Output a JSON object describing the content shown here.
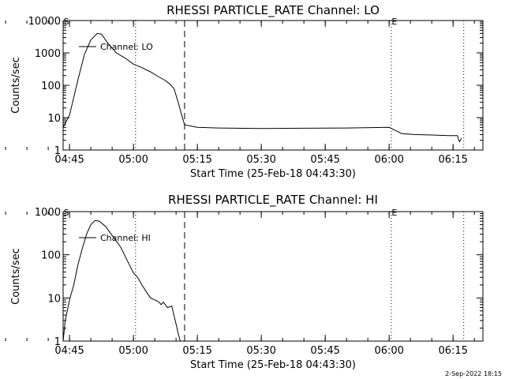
{
  "footer": {
    "date_stamp": "2-Sep-2022 18:15"
  },
  "chart_data": [
    {
      "type": "line",
      "title": "RHESSI PARTICLE_RATE Channel: LO",
      "xlabel": "Start Time (25-Feb-18 04:43:30)",
      "ylabel": "Counts/sec",
      "y_scale": "log",
      "ylim": [
        1,
        10000
      ],
      "xlim": [
        "04:43:30",
        "06:22:00"
      ],
      "x_ticks": [
        "04:45",
        "05:00",
        "05:15",
        "05:30",
        "05:45",
        "06:00",
        "06:15"
      ],
      "y_ticks": [
        "1",
        "10",
        "100",
        "1000",
        "10000"
      ],
      "legend": {
        "entries": [
          "Channel: LO"
        ],
        "placement": "top-left"
      },
      "markers": [
        {
          "time": "04:43:30",
          "label": "S",
          "style": "none"
        },
        {
          "time": "05:00:30",
          "label": "",
          "style": "dotted"
        },
        {
          "time": "05:12:00",
          "label": "",
          "style": "dashed"
        },
        {
          "time": "06:00:30",
          "label": "E",
          "style": "dotted"
        },
        {
          "time": "06:17:30",
          "label": "",
          "style": "dotted"
        }
      ],
      "series": [
        {
          "name": "Channel: LO",
          "points": [
            [
              "04:43:30",
              5
            ],
            [
              "04:45:00",
              12
            ],
            [
              "04:47:00",
              150
            ],
            [
              "04:48:30",
              900
            ],
            [
              "04:50:00",
              2500
            ],
            [
              "04:51:30",
              4000
            ],
            [
              "04:52:30",
              3800
            ],
            [
              "04:54:00",
              2000
            ],
            [
              "04:56:00",
              1000
            ],
            [
              "04:58:00",
              700
            ],
            [
              "05:00:00",
              450
            ],
            [
              "05:02:00",
              350
            ],
            [
              "05:04:00",
              260
            ],
            [
              "05:06:00",
              180
            ],
            [
              "05:07:30",
              140
            ],
            [
              "05:08:30",
              110
            ],
            [
              "05:09:30",
              80
            ],
            [
              "05:10:30",
              30
            ],
            [
              "05:11:30",
              10
            ],
            [
              "05:12:00",
              6
            ],
            [
              "05:15:00",
              5
            ],
            [
              "05:20:00",
              4.8
            ],
            [
              "05:30:00",
              4.6
            ],
            [
              "05:40:00",
              4.7
            ],
            [
              "05:50:00",
              4.8
            ],
            [
              "06:00:00",
              5.0
            ],
            [
              "06:01:30",
              4.0
            ],
            [
              "06:03:00",
              3.2
            ],
            [
              "06:06:00",
              3.0
            ],
            [
              "06:10:00",
              2.9
            ],
            [
              "06:14:00",
              2.8
            ],
            [
              "06:16:00",
              2.8
            ],
            [
              "06:16:30",
              1.8
            ],
            [
              "06:17:00",
              2.3
            ]
          ]
        }
      ]
    },
    {
      "type": "line",
      "title": "RHESSI PARTICLE_RATE Channel: HI",
      "xlabel": "Start Time (25-Feb-18 04:43:30)",
      "ylabel": "Counts/sec",
      "y_scale": "log",
      "ylim": [
        1,
        1000
      ],
      "xlim": [
        "04:43:30",
        "06:22:00"
      ],
      "x_ticks": [
        "04:45",
        "05:00",
        "05:15",
        "05:30",
        "05:45",
        "06:00",
        "06:15"
      ],
      "y_ticks": [
        "1",
        "10",
        "100",
        "1000"
      ],
      "legend": {
        "entries": [
          "Channel: HI"
        ],
        "placement": "top-left"
      },
      "markers": [
        {
          "time": "04:43:30",
          "label": "S",
          "style": "none"
        },
        {
          "time": "05:00:30",
          "label": "",
          "style": "dotted"
        },
        {
          "time": "05:12:00",
          "label": "",
          "style": "dashed"
        },
        {
          "time": "06:00:30",
          "label": "E",
          "style": "dotted"
        },
        {
          "time": "06:17:30",
          "label": "",
          "style": "dotted"
        }
      ],
      "series": [
        {
          "name": "Channel: HI",
          "points": [
            [
              "04:43:30",
              1
            ],
            [
              "04:44:00",
              3
            ],
            [
              "04:45:00",
              9
            ],
            [
              "04:46:00",
              20
            ],
            [
              "04:47:00",
              60
            ],
            [
              "04:48:00",
              140
            ],
            [
              "04:49:00",
              300
            ],
            [
              "04:50:00",
              500
            ],
            [
              "04:51:00",
              620
            ],
            [
              "04:52:00",
              600
            ],
            [
              "04:53:30",
              450
            ],
            [
              "04:55:00",
              280
            ],
            [
              "04:57:00",
              150
            ],
            [
              "04:59:00",
              60
            ],
            [
              "05:00:00",
              38
            ],
            [
              "05:01:00",
              30
            ],
            [
              "05:02:00",
              20
            ],
            [
              "05:03:00",
              14
            ],
            [
              "05:04:00",
              10
            ],
            [
              "05:05:00",
              9
            ],
            [
              "05:06:00",
              8
            ],
            [
              "05:06:30",
              7
            ],
            [
              "05:07:00",
              8
            ],
            [
              "05:08:00",
              6
            ],
            [
              "05:09:00",
              6.5
            ],
            [
              "05:09:30",
              4
            ],
            [
              "05:10:00",
              2.5
            ],
            [
              "05:10:30",
              1.5
            ],
            [
              "05:11:00",
              1
            ]
          ]
        }
      ]
    }
  ]
}
